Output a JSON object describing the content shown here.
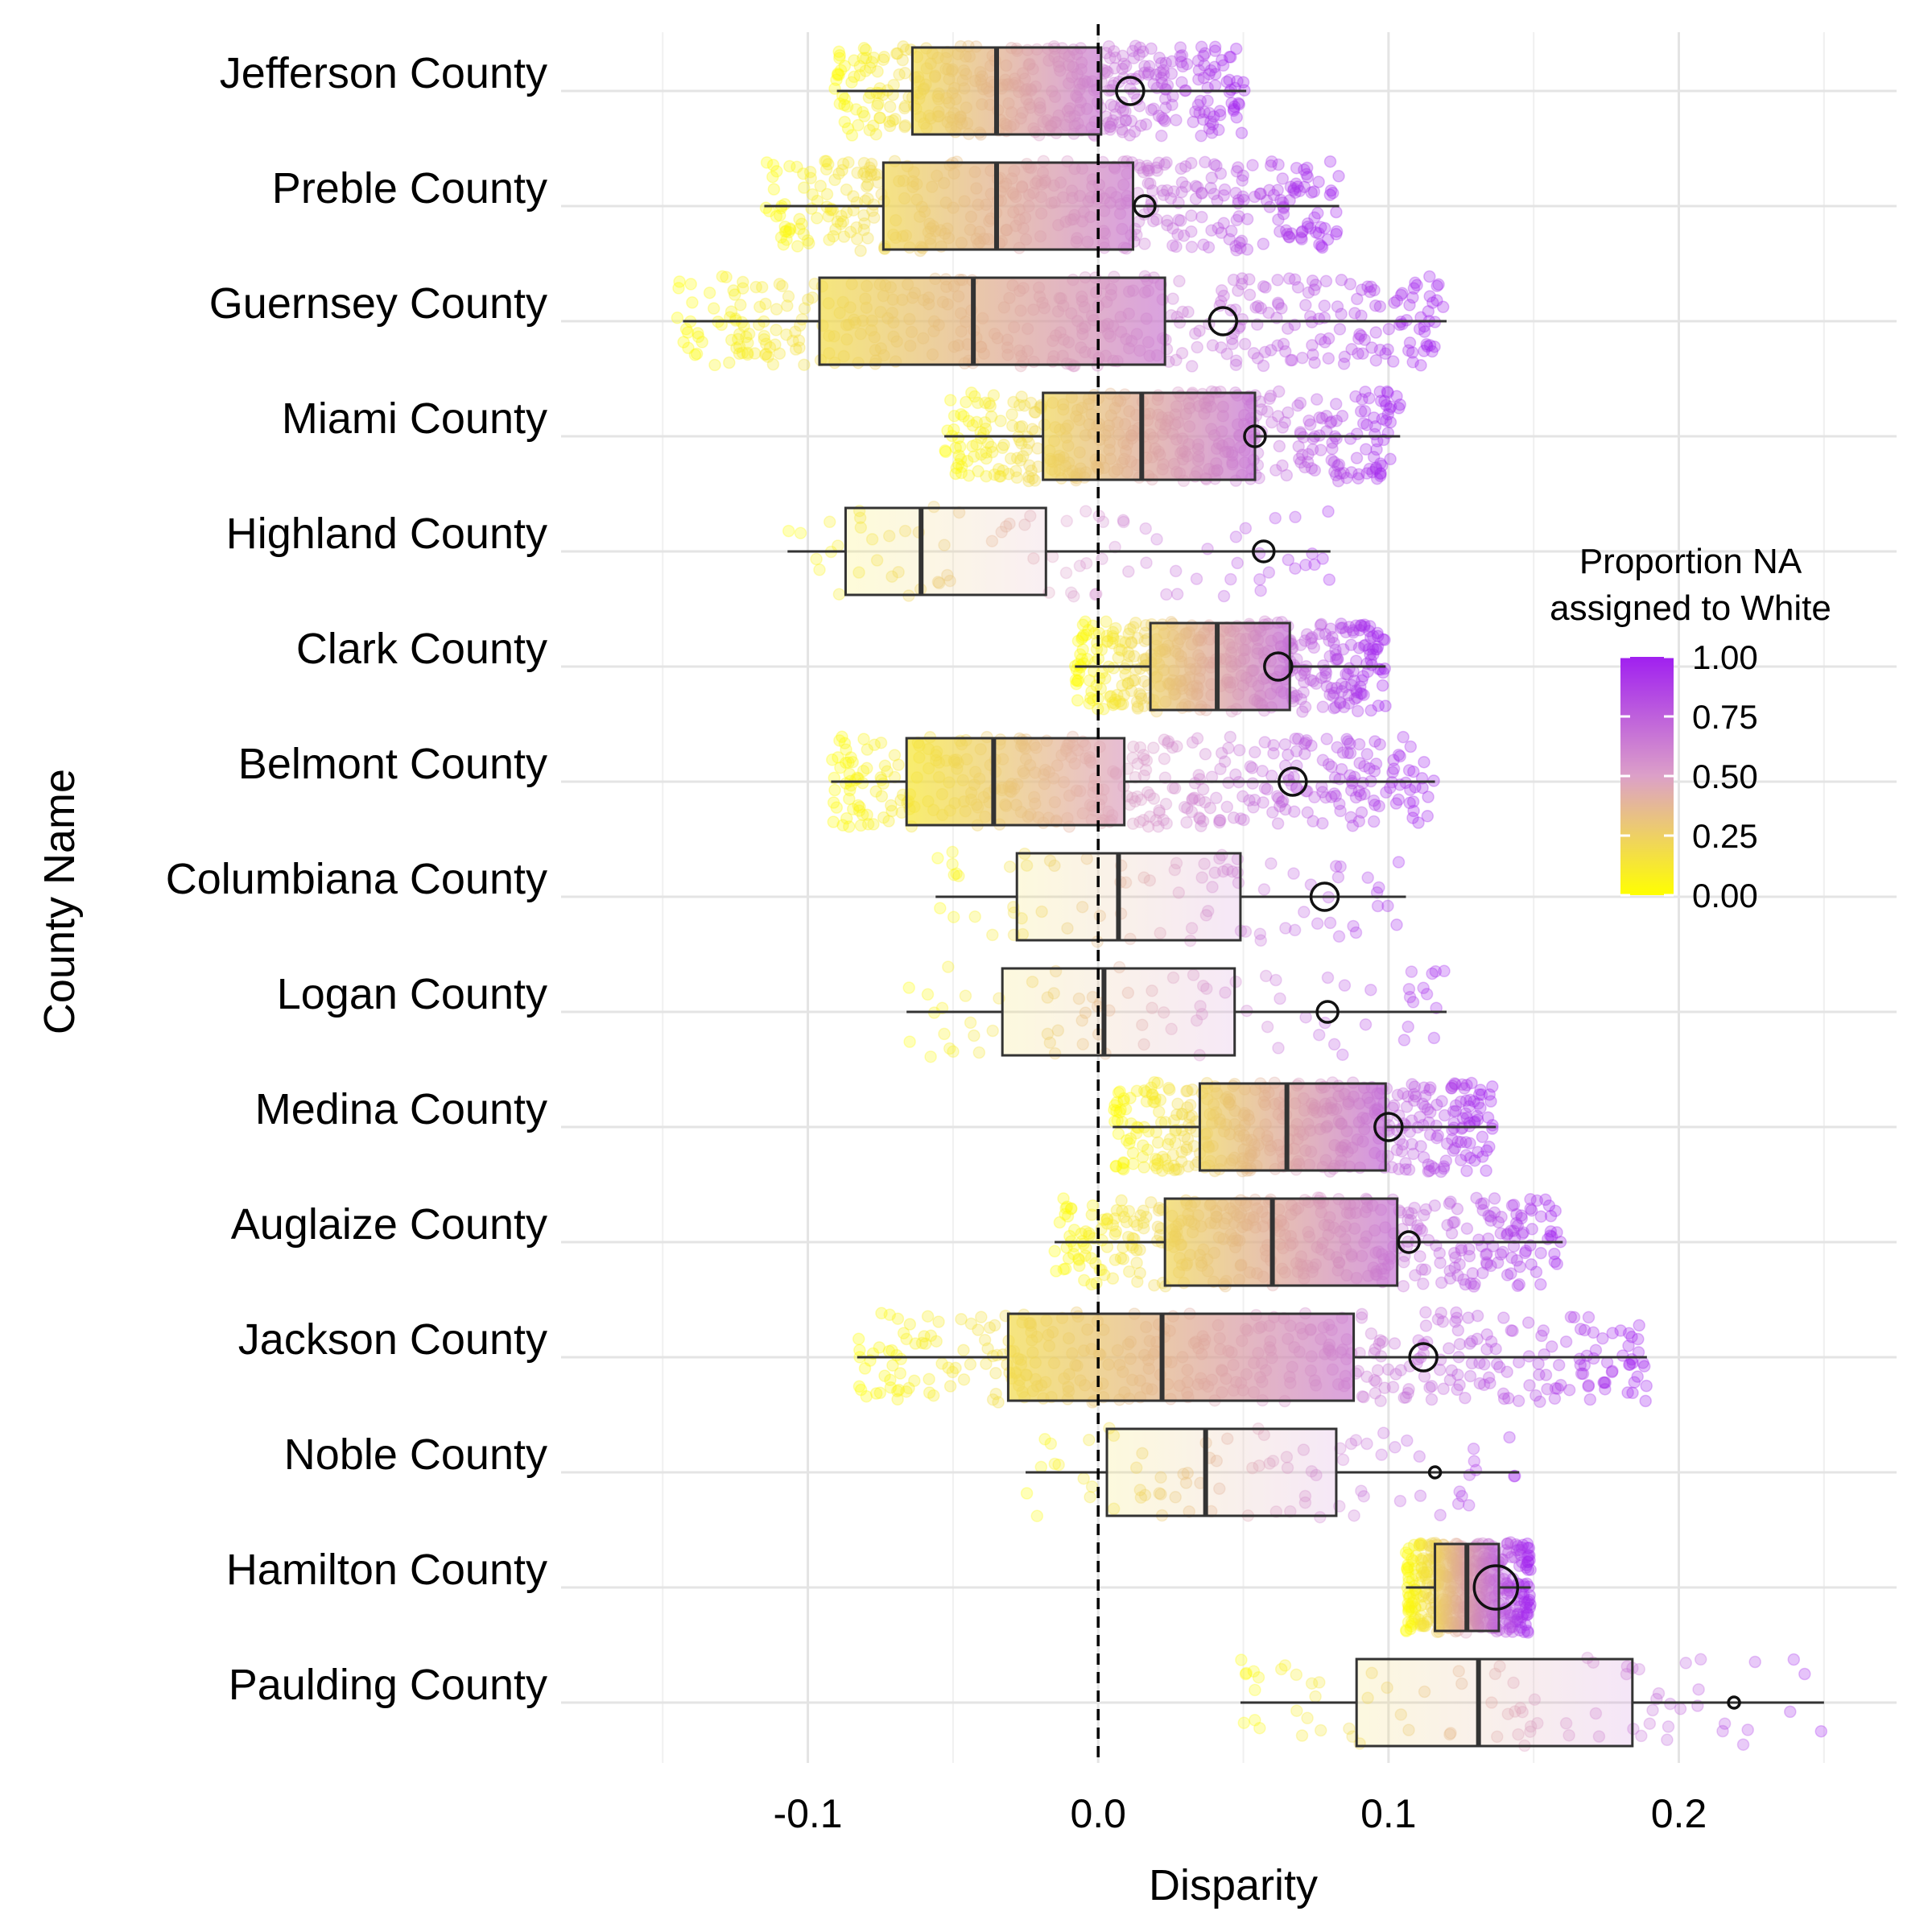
{
  "chart_data": {
    "type": "box",
    "ylabel": "County Name",
    "xlabel": "Disparity",
    "xlim": [
      -0.185,
      0.275
    ],
    "x_ticks": [
      -0.1,
      0.0,
      0.1,
      0.2
    ],
    "x_tick_labels": [
      "-0.1",
      "0.0",
      "0.1",
      "0.2"
    ],
    "reference_line": 0.0,
    "grid": true,
    "legend": {
      "title_line1": "Proportion NA",
      "title_line2": "assigned to White",
      "ticks": [
        0.0,
        0.25,
        0.5,
        0.75,
        1.0
      ],
      "tick_labels": [
        "0.00",
        "0.25",
        "0.50",
        "0.75",
        "1.00"
      ],
      "color_low": "#FFFF00",
      "color_high": "#A020F0",
      "placement": "right"
    },
    "counties": [
      {
        "name": "Jefferson County",
        "whisker_low": -0.09,
        "q1": -0.064,
        "median": -0.035,
        "q3": 0.001,
        "whisker_high": 0.051,
        "marker": 0.011,
        "marker_size": 3,
        "points_low": -0.091,
        "points_high": 0.051,
        "density": "high"
      },
      {
        "name": "Preble County",
        "whisker_low": -0.115,
        "q1": -0.074,
        "median": -0.035,
        "q3": 0.012,
        "whisker_high": 0.083,
        "marker": 0.016,
        "marker_size": 2,
        "points_low": -0.115,
        "points_high": 0.083,
        "density": "high"
      },
      {
        "name": "Guernsey County",
        "whisker_low": -0.143,
        "q1": -0.096,
        "median": -0.043,
        "q3": 0.023,
        "whisker_high": 0.12,
        "marker": 0.043,
        "marker_size": 3,
        "points_low": -0.145,
        "points_high": 0.12,
        "density": "high"
      },
      {
        "name": "Miami County",
        "whisker_low": -0.053,
        "q1": -0.019,
        "median": 0.015,
        "q3": 0.054,
        "whisker_high": 0.104,
        "marker": 0.054,
        "marker_size": 2,
        "points_low": -0.053,
        "points_high": 0.104,
        "density": "high"
      },
      {
        "name": "Highland County",
        "whisker_low": -0.107,
        "q1": -0.087,
        "median": -0.061,
        "q3": -0.018,
        "whisker_high": 0.08,
        "marker": 0.057,
        "marker_size": 2,
        "points_low": -0.107,
        "points_high": 0.08,
        "density": "low"
      },
      {
        "name": "Clark County",
        "whisker_low": -0.008,
        "q1": 0.018,
        "median": 0.041,
        "q3": 0.066,
        "whisker_high": 0.099,
        "marker": 0.062,
        "marker_size": 3,
        "points_low": -0.008,
        "points_high": 0.099,
        "density": "high"
      },
      {
        "name": "Belmont County",
        "whisker_low": -0.092,
        "q1": -0.066,
        "median": -0.036,
        "q3": 0.009,
        "whisker_high": 0.116,
        "marker": 0.067,
        "marker_size": 3,
        "points_low": -0.093,
        "points_high": 0.116,
        "density": "high"
      },
      {
        "name": "Columbiana County",
        "whisker_low": -0.056,
        "q1": -0.028,
        "median": 0.007,
        "q3": 0.049,
        "whisker_high": 0.106,
        "marker": 0.078,
        "marker_size": 3,
        "points_low": -0.056,
        "points_high": 0.106,
        "density": "low"
      },
      {
        "name": "Logan County",
        "whisker_low": -0.066,
        "q1": -0.033,
        "median": 0.002,
        "q3": 0.047,
        "whisker_high": 0.12,
        "marker": 0.079,
        "marker_size": 2,
        "points_low": -0.066,
        "points_high": 0.12,
        "density": "low"
      },
      {
        "name": "Medina County",
        "whisker_low": 0.005,
        "q1": 0.035,
        "median": 0.065,
        "q3": 0.099,
        "whisker_high": 0.137,
        "marker": 0.1,
        "marker_size": 3,
        "points_low": 0.005,
        "points_high": 0.137,
        "density": "high"
      },
      {
        "name": "Auglaize County",
        "whisker_low": -0.015,
        "q1": 0.023,
        "median": 0.06,
        "q3": 0.103,
        "whisker_high": 0.16,
        "marker": 0.107,
        "marker_size": 2,
        "points_low": -0.015,
        "points_high": 0.16,
        "density": "high"
      },
      {
        "name": "Jackson County",
        "whisker_low": -0.083,
        "q1": -0.031,
        "median": 0.022,
        "q3": 0.088,
        "whisker_high": 0.189,
        "marker": 0.112,
        "marker_size": 3,
        "points_low": -0.083,
        "points_high": 0.189,
        "density": "high"
      },
      {
        "name": "Noble County",
        "whisker_low": -0.025,
        "q1": 0.003,
        "median": 0.037,
        "q3": 0.082,
        "whisker_high": 0.145,
        "marker": 0.116,
        "marker_size": 1,
        "points_low": -0.025,
        "points_high": 0.145,
        "density": "low"
      },
      {
        "name": "Hamilton County",
        "whisker_low": 0.106,
        "q1": 0.116,
        "median": 0.127,
        "q3": 0.138,
        "whisker_high": 0.149,
        "marker": 0.137,
        "marker_size": 4,
        "points_low": 0.106,
        "points_high": 0.149,
        "density": "high"
      },
      {
        "name": "Paulding County",
        "whisker_low": 0.049,
        "q1": 0.089,
        "median": 0.131,
        "q3": 0.184,
        "whisker_high": 0.25,
        "marker": 0.219,
        "marker_size": 1,
        "points_low": 0.049,
        "points_high": 0.25,
        "density": "low"
      }
    ]
  }
}
